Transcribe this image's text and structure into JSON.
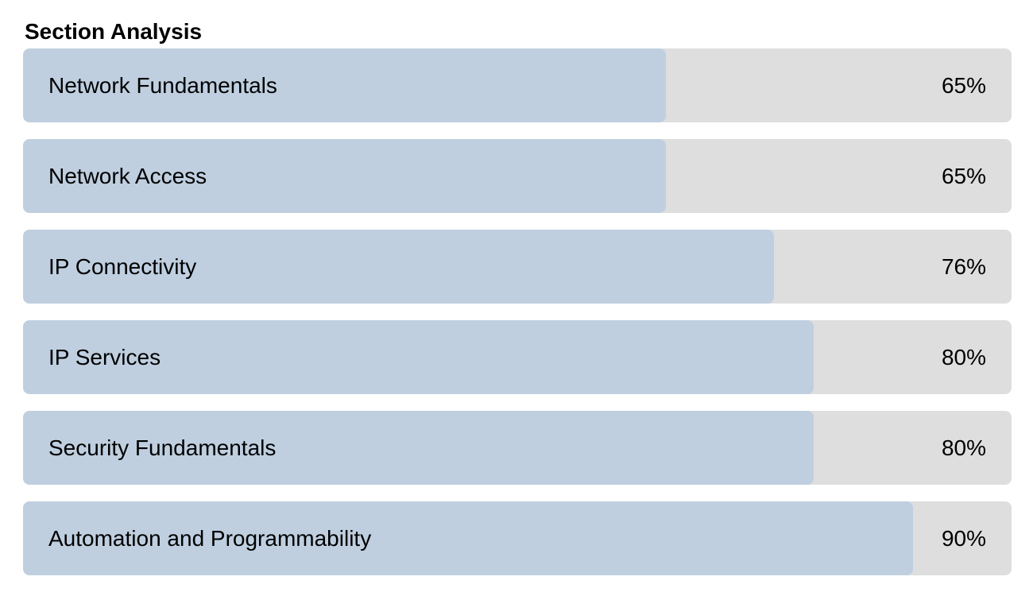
{
  "section": {
    "title": "Section Analysis"
  },
  "colors": {
    "track": "#dedede",
    "fill": "#bfcfe0",
    "text": "#000000"
  },
  "chart_data": {
    "type": "bar",
    "orientation": "horizontal",
    "title": "Section Analysis",
    "categories": [
      "Network Fundamentals",
      "Network Access",
      "IP Connectivity",
      "IP Services",
      "Security Fundamentals",
      "Automation and Programmability"
    ],
    "values": [
      65,
      65,
      76,
      80,
      80,
      90
    ],
    "value_labels": [
      "65%",
      "65%",
      "76%",
      "80%",
      "80%",
      "90%"
    ],
    "xlim": [
      0,
      100
    ],
    "grid": false,
    "legend": "none"
  }
}
